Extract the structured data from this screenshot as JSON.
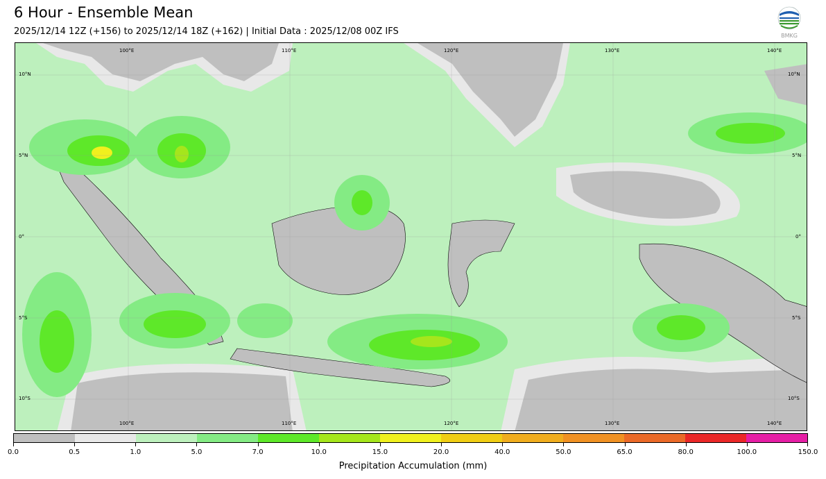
{
  "header": {
    "title": "6 Hour - Ensemble Mean",
    "subtitle": "2025/12/14 12Z (+156) to 2025/12/14 18Z (+162) | Initial Data : 2025/12/08 00Z IFS",
    "logo_text": "BMKG"
  },
  "map": {
    "lon_labels": [
      "100°E",
      "110°E",
      "120°E",
      "130°E",
      "140°E"
    ],
    "lat_labels": [
      "10°N",
      "5°N",
      "0°",
      "5°S",
      "10°S"
    ]
  },
  "colorbar": {
    "title": "Precipitation Accumulation (mm)",
    "ticks": [
      "0.0",
      "0.5",
      "1.0",
      "5.0",
      "7.0",
      "10.0",
      "15.0",
      "20.0",
      "40.0",
      "50.0",
      "65.0",
      "80.0",
      "100.0",
      "150.0"
    ],
    "colors": [
      "#bfbfbf",
      "#e8e8e8",
      "#bdf0bd",
      "#84eb84",
      "#5ee829",
      "#a5e61c",
      "#f0f01e",
      "#f0cd14",
      "#f0ad1e",
      "#f09123",
      "#eb6a28",
      "#eb2828",
      "#e61ea5"
    ]
  }
}
